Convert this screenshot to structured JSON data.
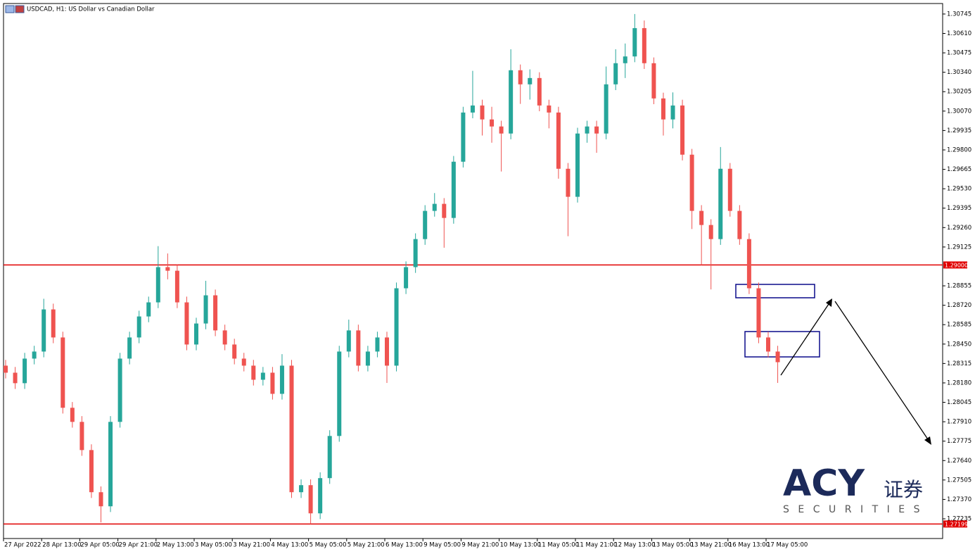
{
  "chart_data": {
    "type": "candlestick",
    "title": "USDCAD, H1:  US Dollar vs Canadian Dollar",
    "up_color": "#26a69a",
    "down_color": "#ef5350",
    "ylim": [
      1.27098,
      1.30818
    ],
    "yticks": [
      1.30745,
      {
        "value": 1.3061,
        "label": "1.30610"
      },
      1.30475,
      {
        "value": 1.3034,
        "label": "1.30340"
      },
      1.30205,
      {
        "value": 1.3007,
        "label": "1.30070"
      },
      1.29935,
      {
        "value": 1.298,
        "label": "1.29800"
      },
      1.29665,
      {
        "value": 1.2953,
        "label": "1.29530"
      },
      1.29395,
      {
        "value": 1.2926,
        "label": "1.29260"
      },
      1.29125,
      1.28855,
      {
        "value": 1.2872,
        "label": "1.28720"
      },
      1.28585,
      {
        "value": 1.2845,
        "label": "1.28450"
      },
      1.28315,
      {
        "value": 1.2818,
        "label": "1.28180"
      },
      1.28045,
      {
        "value": 1.2791,
        "label": "1.27910"
      },
      1.27775,
      {
        "value": 1.2764,
        "label": "1.27640"
      },
      1.27505,
      {
        "value": 1.2737,
        "label": "1.27370"
      },
      1.27235
    ],
    "hlines": [
      {
        "value": 1.29,
        "label": "1.29000",
        "color": "#e00000"
      },
      {
        "value": 1.27199,
        "label": "1.27199",
        "color": "#e00000"
      }
    ],
    "categories": [
      "27 Apr 2022",
      null,
      null,
      null,
      "28 Apr 13:00",
      null,
      null,
      null,
      "29 Apr 05:00",
      null,
      null,
      null,
      "29 Apr 21:00",
      null,
      null,
      null,
      "2 May 13:00",
      null,
      null,
      null,
      "3 May 05:00",
      null,
      null,
      null,
      "3 May 21:00",
      null,
      null,
      null,
      "4 May 13:00",
      null,
      null,
      null,
      "5 May 05:00",
      null,
      null,
      null,
      "5 May 21:00",
      null,
      null,
      null,
      "6 May 13:00",
      null,
      null,
      null,
      "9 May 05:00",
      null,
      null,
      null,
      "9 May 21:00",
      null,
      null,
      null,
      "10 May 13:00",
      null,
      null,
      null,
      "11 May 05:00",
      null,
      null,
      null,
      "11 May 21:00",
      null,
      null,
      null,
      "12 May 13:00",
      null,
      null,
      null,
      "13 May 05:00",
      null,
      null,
      null,
      "13 May 21:00",
      null,
      null,
      null,
      "16 May 13:00",
      null,
      null,
      null,
      "17 May 05:00",
      null
    ],
    "ohlc": [
      [
        1.283,
        1.2834,
        1.28211,
        1.28251
      ],
      [
        1.28251,
        1.28291,
        1.28138,
        1.28178
      ],
      [
        1.28178,
        1.28389,
        1.28138,
        1.28349
      ],
      [
        1.28349,
        1.28438,
        1.28309,
        1.28398
      ],
      [
        1.28398,
        1.28765,
        1.28358,
        1.28691
      ],
      [
        1.28691,
        1.28731,
        1.28456,
        1.28496
      ],
      [
        1.28496,
        1.28536,
        1.27967,
        1.28007
      ],
      [
        1.28007,
        1.28047,
        1.27869,
        1.27909
      ],
      [
        1.27909,
        1.27949,
        1.27673,
        1.27713
      ],
      [
        1.27713,
        1.27753,
        1.2738,
        1.2742
      ],
      [
        1.2742,
        1.2746,
        1.2721,
        1.27322
      ],
      [
        1.27322,
        1.27949,
        1.27282,
        1.27909
      ],
      [
        1.27909,
        1.28389,
        1.27869,
        1.28349
      ],
      [
        1.28349,
        1.28536,
        1.28309,
        1.28496
      ],
      [
        1.28496,
        1.28682,
        1.28456,
        1.28642
      ],
      [
        1.28642,
        1.2878,
        1.28602,
        1.2874
      ],
      [
        1.2874,
        1.29131,
        1.287,
        1.28985
      ],
      [
        1.28985,
        1.2908,
        1.289,
        1.2896
      ],
      [
        1.2896,
        1.29,
        1.287,
        1.2874
      ],
      [
        1.2874,
        1.2878,
        1.28407,
        1.28447
      ],
      [
        1.28447,
        1.28633,
        1.28407,
        1.28593
      ],
      [
        1.28593,
        1.2889,
        1.28553,
        1.28789
      ],
      [
        1.28789,
        1.28829,
        1.28505,
        1.28545
      ],
      [
        1.28545,
        1.28585,
        1.28407,
        1.28447
      ],
      [
        1.28447,
        1.28487,
        1.28309,
        1.28349
      ],
      [
        1.28349,
        1.28389,
        1.2826,
        1.283
      ],
      [
        1.283,
        1.2834,
        1.28162,
        1.28202
      ],
      [
        1.28202,
        1.28291,
        1.28162,
        1.28251
      ],
      [
        1.28251,
        1.28291,
        1.28064,
        1.28104
      ],
      [
        1.28104,
        1.2838,
        1.28064,
        1.283
      ],
      [
        1.283,
        1.2834,
        1.2738,
        1.2742
      ],
      [
        1.2742,
        1.27509,
        1.2738,
        1.27469
      ],
      [
        1.27469,
        1.27509,
        1.27199,
        1.27273
      ],
      [
        1.27273,
        1.27558,
        1.27233,
        1.27518
      ],
      [
        1.27518,
        1.27851,
        1.27478,
        1.27811
      ],
      [
        1.27811,
        1.28438,
        1.27771,
        1.28398
      ],
      [
        1.28398,
        1.2862,
        1.28358,
        1.28545
      ],
      [
        1.28545,
        1.28585,
        1.2826,
        1.283
      ],
      [
        1.283,
        1.28438,
        1.2826,
        1.28398
      ],
      [
        1.28398,
        1.28536,
        1.28358,
        1.28496
      ],
      [
        1.28496,
        1.28536,
        1.2818,
        1.283
      ],
      [
        1.283,
        1.28878,
        1.2826,
        1.28838
      ],
      [
        1.28838,
        1.29025,
        1.28798,
        1.28985
      ],
      [
        1.28985,
        1.2922,
        1.28945,
        1.2918
      ],
      [
        1.2918,
        1.29416,
        1.2914,
        1.29376
      ],
      [
        1.29376,
        1.295,
        1.29336,
        1.29425
      ],
      [
        1.29425,
        1.29465,
        1.2912,
        1.29327
      ],
      [
        1.29327,
        1.29758,
        1.29287,
        1.29718
      ],
      [
        1.29718,
        1.301,
        1.29678,
        1.3006
      ],
      [
        1.3006,
        1.3035,
        1.3002,
        1.30109
      ],
      [
        1.30109,
        1.30149,
        1.299,
        1.30012
      ],
      [
        1.30012,
        1.301,
        1.2985,
        1.29963
      ],
      [
        1.29963,
        1.30003,
        1.2965,
        1.29914
      ],
      [
        1.29914,
        1.305,
        1.29874,
        1.30354
      ],
      [
        1.30354,
        1.30394,
        1.3012,
        1.30256
      ],
      [
        1.30256,
        1.3036,
        1.3015,
        1.303
      ],
      [
        1.303,
        1.3034,
        1.30069,
        1.30109
      ],
      [
        1.30109,
        1.30149,
        1.2995,
        1.3006
      ],
      [
        1.3006,
        1.301,
        1.296,
        1.29669
      ],
      [
        1.29669,
        1.29709,
        1.292,
        1.29474
      ],
      [
        1.29474,
        1.29954,
        1.29434,
        1.29914
      ],
      [
        1.29914,
        1.30003,
        1.2985,
        1.29963
      ],
      [
        1.29963,
        1.30003,
        1.2978,
        1.29914
      ],
      [
        1.29914,
        1.3038,
        1.29874,
        1.30256
      ],
      [
        1.30256,
        1.305,
        1.30216,
        1.30403
      ],
      [
        1.30403,
        1.3054,
        1.303,
        1.3045
      ],
      [
        1.3045,
        1.30745,
        1.3041,
        1.30647
      ],
      [
        1.30647,
        1.307,
        1.30363,
        1.30403
      ],
      [
        1.30403,
        1.30443,
        1.30118,
        1.30158
      ],
      [
        1.30158,
        1.30198,
        1.299,
        1.30012
      ],
      [
        1.30012,
        1.302,
        1.2995,
        1.30109
      ],
      [
        1.30109,
        1.30149,
        1.29727,
        1.29767
      ],
      [
        1.29767,
        1.29807,
        1.2925,
        1.29376
      ],
      [
        1.29376,
        1.29416,
        1.29,
        1.29278
      ],
      [
        1.29278,
        1.29318,
        1.2883,
        1.2918
      ],
      [
        1.2918,
        1.2982,
        1.2914,
        1.29669
      ],
      [
        1.29669,
        1.29709,
        1.29336,
        1.29376
      ],
      [
        1.29376,
        1.29416,
        1.2914,
        1.2918
      ],
      [
        1.2918,
        1.2922,
        1.28798,
        1.28838
      ],
      [
        1.28838,
        1.28878,
        1.28456,
        1.28496
      ],
      [
        1.28496,
        1.28536,
        1.28358,
        1.28398
      ],
      [
        1.28398,
        1.28438,
        1.2818,
        1.28324
      ]
    ],
    "logo": {
      "brand": "ACY",
      "cn": "证券",
      "sub": "SECURITIES"
    }
  }
}
